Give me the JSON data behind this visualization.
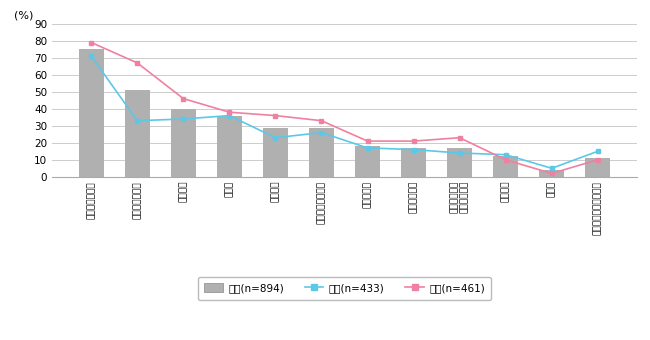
{
  "categories": [
    "虫よけ防止対策",
    "日焼け止め対策",
    "防寒対策",
    "雨対策",
    "暑さ対策",
    "調理の生ごみ対策",
    "コロナ対策",
    "盗難防止対策",
    "川遊びなどで\n濃れた服対策",
    "クマ対策",
    "その他",
    "特に対策はしていない"
  ],
  "zentai": [
    75,
    51,
    40,
    36,
    29,
    29,
    18,
    17,
    17,
    12,
    4,
    11
  ],
  "dansei": [
    71,
    33,
    34,
    36,
    23,
    26,
    17,
    16,
    14,
    13,
    5,
    15
  ],
  "josei": [
    79,
    67,
    46,
    38,
    36,
    33,
    21,
    21,
    23,
    10,
    2,
    10
  ],
  "bar_color": "#b0b0b0",
  "dansei_color": "#5bc8e8",
  "josei_color": "#f080a0",
  "ylabel": "(%)",
  "ylim": [
    0,
    90
  ],
  "yticks": [
    0,
    10,
    20,
    30,
    40,
    50,
    60,
    70,
    80,
    90
  ],
  "legend_labels": [
    "全体(n=894)",
    "男性(n=433)",
    "女性(n=461)"
  ],
  "grid_color": "#cccccc"
}
